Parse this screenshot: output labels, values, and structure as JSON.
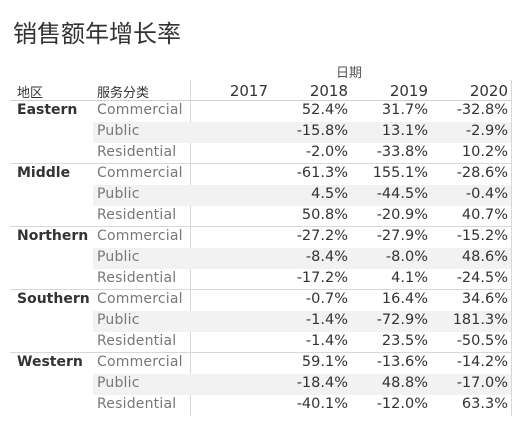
{
  "title": "销售额年增长率",
  "column_group_label": "日期",
  "headers": {
    "region": "地区",
    "category": "服务分类",
    "years": [
      "2017",
      "2018",
      "2019",
      "2020"
    ]
  },
  "groups": [
    {
      "region": "Eastern",
      "rows": [
        {
          "category": "Commercial",
          "values": [
            "",
            "52.4%",
            "31.7%",
            "-32.8%"
          ]
        },
        {
          "category": "Public",
          "values": [
            "",
            "-15.8%",
            "13.1%",
            "-2.9%"
          ]
        },
        {
          "category": "Residential",
          "values": [
            "",
            "-2.0%",
            "-33.8%",
            "10.2%"
          ]
        }
      ]
    },
    {
      "region": "Middle",
      "rows": [
        {
          "category": "Commercial",
          "values": [
            "",
            "-61.3%",
            "155.1%",
            "-28.6%"
          ]
        },
        {
          "category": "Public",
          "values": [
            "",
            "4.5%",
            "-44.5%",
            "-0.4%"
          ]
        },
        {
          "category": "Residential",
          "values": [
            "",
            "50.8%",
            "-20.9%",
            "40.7%"
          ]
        }
      ]
    },
    {
      "region": "Northern",
      "rows": [
        {
          "category": "Commercial",
          "values": [
            "",
            "-27.2%",
            "-27.9%",
            "-15.2%"
          ]
        },
        {
          "category": "Public",
          "values": [
            "",
            "-8.4%",
            "-8.0%",
            "48.6%"
          ]
        },
        {
          "category": "Residential",
          "values": [
            "",
            "-17.2%",
            "4.1%",
            "-24.5%"
          ]
        }
      ]
    },
    {
      "region": "Southern",
      "rows": [
        {
          "category": "Commercial",
          "values": [
            "",
            "-0.7%",
            "16.4%",
            "34.6%"
          ]
        },
        {
          "category": "Public",
          "values": [
            "",
            "-1.4%",
            "-72.9%",
            "181.3%"
          ]
        },
        {
          "category": "Residential",
          "values": [
            "",
            "-1.4%",
            "23.5%",
            "-50.5%"
          ]
        }
      ]
    },
    {
      "region": "Western",
      "rows": [
        {
          "category": "Commercial",
          "values": [
            "",
            "59.1%",
            "-13.6%",
            "-14.2%"
          ]
        },
        {
          "category": "Public",
          "values": [
            "",
            "-18.4%",
            "48.8%",
            "-17.0%"
          ]
        },
        {
          "category": "Residential",
          "values": [
            "",
            "-40.1%",
            "-12.0%",
            "63.3%"
          ]
        }
      ]
    }
  ]
}
